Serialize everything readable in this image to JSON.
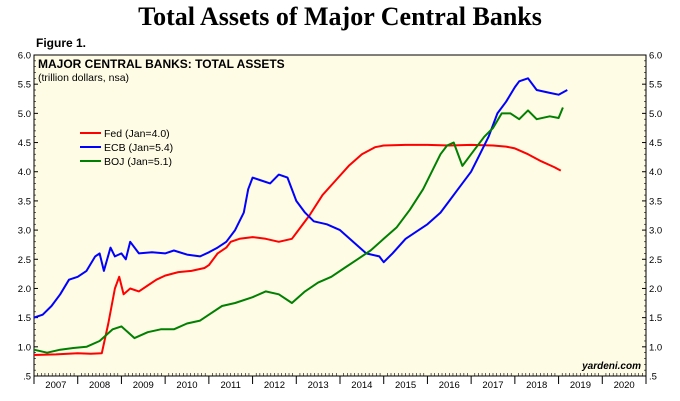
{
  "page": {
    "title": "Total Assets of Major Central Banks",
    "figure_label": "Figure 1."
  },
  "chart_data": {
    "type": "line",
    "title": "MAJOR CENTRAL BANKS: TOTAL ASSETS",
    "subtitle": "(trillion dollars, nsa)",
    "credit": "yardeni.com",
    "xlim": [
      2007,
      2021
    ],
    "ylim": [
      0.5,
      6.0
    ],
    "y_ticks": [
      ".5",
      "1.0",
      "1.5",
      "2.0",
      "2.5",
      "3.0",
      "3.5",
      "4.0",
      "4.5",
      "5.0",
      "5.5",
      "6.0"
    ],
    "x_tick_labels": [
      "2007",
      "2008",
      "2009",
      "2010",
      "2011",
      "2012",
      "2013",
      "2014",
      "2015",
      "2016",
      "2017",
      "2018",
      "2019",
      "2020"
    ],
    "grid": false,
    "legend_position": "upper-left",
    "background_color": "#fffce6",
    "series": [
      {
        "name": "Fed (Jan=4.0)",
        "color": "#ff0000",
        "points": [
          [
            2007.0,
            0.86
          ],
          [
            2007.5,
            0.87
          ],
          [
            2008.0,
            0.89
          ],
          [
            2008.3,
            0.88
          ],
          [
            2008.55,
            0.89
          ],
          [
            2008.7,
            1.4
          ],
          [
            2008.85,
            2.0
          ],
          [
            2008.95,
            2.2
          ],
          [
            2009.05,
            1.9
          ],
          [
            2009.2,
            2.0
          ],
          [
            2009.4,
            1.95
          ],
          [
            2009.6,
            2.05
          ],
          [
            2009.8,
            2.15
          ],
          [
            2010.0,
            2.22
          ],
          [
            2010.3,
            2.28
          ],
          [
            2010.6,
            2.3
          ],
          [
            2010.9,
            2.35
          ],
          [
            2011.0,
            2.4
          ],
          [
            2011.2,
            2.6
          ],
          [
            2011.4,
            2.7
          ],
          [
            2011.5,
            2.8
          ],
          [
            2011.7,
            2.85
          ],
          [
            2012.0,
            2.88
          ],
          [
            2012.3,
            2.85
          ],
          [
            2012.6,
            2.8
          ],
          [
            2012.9,
            2.85
          ],
          [
            2013.0,
            2.95
          ],
          [
            2013.3,
            3.25
          ],
          [
            2013.6,
            3.6
          ],
          [
            2013.9,
            3.85
          ],
          [
            2014.2,
            4.1
          ],
          [
            2014.5,
            4.3
          ],
          [
            2014.8,
            4.42
          ],
          [
            2015.0,
            4.45
          ],
          [
            2015.5,
            4.46
          ],
          [
            2016.0,
            4.46
          ],
          [
            2016.5,
            4.45
          ],
          [
            2017.0,
            4.46
          ],
          [
            2017.5,
            4.45
          ],
          [
            2017.8,
            4.43
          ],
          [
            2018.0,
            4.4
          ],
          [
            2018.3,
            4.3
          ],
          [
            2018.6,
            4.18
          ],
          [
            2018.9,
            4.08
          ],
          [
            2019.05,
            4.02
          ]
        ]
      },
      {
        "name": "ECB (Jan=5.4)",
        "color": "#0000ff",
        "points": [
          [
            2007.0,
            1.5
          ],
          [
            2007.2,
            1.55
          ],
          [
            2007.4,
            1.7
          ],
          [
            2007.6,
            1.9
          ],
          [
            2007.8,
            2.15
          ],
          [
            2008.0,
            2.2
          ],
          [
            2008.2,
            2.3
          ],
          [
            2008.4,
            2.55
          ],
          [
            2008.5,
            2.6
          ],
          [
            2008.6,
            2.3
          ],
          [
            2008.75,
            2.7
          ],
          [
            2008.85,
            2.55
          ],
          [
            2009.0,
            2.6
          ],
          [
            2009.1,
            2.5
          ],
          [
            2009.2,
            2.8
          ],
          [
            2009.4,
            2.6
          ],
          [
            2009.7,
            2.62
          ],
          [
            2010.0,
            2.6
          ],
          [
            2010.2,
            2.65
          ],
          [
            2010.5,
            2.58
          ],
          [
            2010.8,
            2.55
          ],
          [
            2011.0,
            2.62
          ],
          [
            2011.2,
            2.7
          ],
          [
            2011.4,
            2.8
          ],
          [
            2011.6,
            3.0
          ],
          [
            2011.8,
            3.3
          ],
          [
            2011.9,
            3.7
          ],
          [
            2012.0,
            3.9
          ],
          [
            2012.2,
            3.85
          ],
          [
            2012.4,
            3.8
          ],
          [
            2012.6,
            3.95
          ],
          [
            2012.8,
            3.9
          ],
          [
            2013.0,
            3.5
          ],
          [
            2013.2,
            3.3
          ],
          [
            2013.4,
            3.15
          ],
          [
            2013.7,
            3.1
          ],
          [
            2014.0,
            3.0
          ],
          [
            2014.3,
            2.8
          ],
          [
            2014.6,
            2.6
          ],
          [
            2014.9,
            2.55
          ],
          [
            2015.0,
            2.45
          ],
          [
            2015.2,
            2.6
          ],
          [
            2015.5,
            2.85
          ],
          [
            2015.8,
            3.0
          ],
          [
            2016.0,
            3.1
          ],
          [
            2016.3,
            3.3
          ],
          [
            2016.5,
            3.5
          ],
          [
            2016.7,
            3.7
          ],
          [
            2017.0,
            4.0
          ],
          [
            2017.2,
            4.3
          ],
          [
            2017.4,
            4.6
          ],
          [
            2017.6,
            5.0
          ],
          [
            2017.8,
            5.2
          ],
          [
            2018.0,
            5.45
          ],
          [
            2018.1,
            5.55
          ],
          [
            2018.3,
            5.6
          ],
          [
            2018.5,
            5.4
          ],
          [
            2018.8,
            5.35
          ],
          [
            2019.0,
            5.32
          ],
          [
            2019.2,
            5.4
          ]
        ]
      },
      {
        "name": "BOJ (Jan=5.1)",
        "color": "#008000",
        "points": [
          [
            2007.0,
            0.95
          ],
          [
            2007.3,
            0.9
          ],
          [
            2007.6,
            0.95
          ],
          [
            2007.9,
            0.98
          ],
          [
            2008.2,
            1.0
          ],
          [
            2008.5,
            1.1
          ],
          [
            2008.8,
            1.3
          ],
          [
            2009.0,
            1.35
          ],
          [
            2009.3,
            1.15
          ],
          [
            2009.6,
            1.25
          ],
          [
            2009.9,
            1.3
          ],
          [
            2010.2,
            1.3
          ],
          [
            2010.5,
            1.4
          ],
          [
            2010.8,
            1.45
          ],
          [
            2011.0,
            1.55
          ],
          [
            2011.3,
            1.7
          ],
          [
            2011.6,
            1.75
          ],
          [
            2012.0,
            1.85
          ],
          [
            2012.3,
            1.95
          ],
          [
            2012.6,
            1.9
          ],
          [
            2012.9,
            1.75
          ],
          [
            2013.2,
            1.95
          ],
          [
            2013.5,
            2.1
          ],
          [
            2013.8,
            2.2
          ],
          [
            2014.1,
            2.35
          ],
          [
            2014.4,
            2.5
          ],
          [
            2014.7,
            2.65
          ],
          [
            2015.0,
            2.85
          ],
          [
            2015.3,
            3.05
          ],
          [
            2015.6,
            3.35
          ],
          [
            2015.9,
            3.7
          ],
          [
            2016.1,
            4.0
          ],
          [
            2016.3,
            4.3
          ],
          [
            2016.45,
            4.45
          ],
          [
            2016.6,
            4.5
          ],
          [
            2016.8,
            4.1
          ],
          [
            2017.0,
            4.3
          ],
          [
            2017.3,
            4.6
          ],
          [
            2017.5,
            4.75
          ],
          [
            2017.7,
            5.0
          ],
          [
            2017.9,
            5.0
          ],
          [
            2018.1,
            4.9
          ],
          [
            2018.3,
            5.05
          ],
          [
            2018.5,
            4.9
          ],
          [
            2018.8,
            4.95
          ],
          [
            2019.0,
            4.92
          ],
          [
            2019.1,
            5.1
          ]
        ]
      }
    ]
  }
}
